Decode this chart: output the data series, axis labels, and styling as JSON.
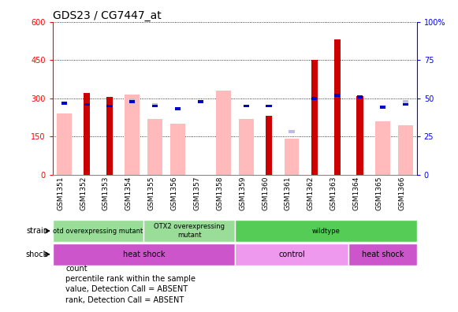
{
  "title": "GDS23 / CG7447_at",
  "samples": [
    "GSM1351",
    "GSM1352",
    "GSM1353",
    "GSM1354",
    "GSM1355",
    "GSM1356",
    "GSM1357",
    "GSM1358",
    "GSM1359",
    "GSM1360",
    "GSM1361",
    "GSM1362",
    "GSM1363",
    "GSM1364",
    "GSM1365",
    "GSM1366"
  ],
  "count_values": [
    null,
    320,
    305,
    null,
    null,
    null,
    null,
    null,
    null,
    230,
    null,
    450,
    530,
    308,
    null,
    null
  ],
  "percentile_values": [
    47,
    46,
    45,
    48,
    45,
    43,
    48,
    null,
    45,
    45,
    null,
    50,
    52,
    51,
    44,
    46
  ],
  "absent_value_values": [
    240,
    null,
    null,
    315,
    220,
    200,
    null,
    330,
    220,
    null,
    140,
    null,
    null,
    null,
    210,
    195
  ],
  "absent_rank_values": [
    47,
    null,
    null,
    49,
    46,
    null,
    null,
    null,
    null,
    null,
    28,
    null,
    null,
    null,
    null,
    48
  ],
  "ylim_left": [
    0,
    600
  ],
  "ylim_right": [
    0,
    100
  ],
  "yticks_left": [
    0,
    150,
    300,
    450,
    600
  ],
  "yticks_right": [
    0,
    25,
    50,
    75,
    100
  ],
  "color_count": "#cc0000",
  "color_percentile": "#0000cc",
  "color_absent_value": "#ffbbbb",
  "color_absent_rank": "#bbbbee",
  "strain_data": [
    {
      "start": 0,
      "end": 4,
      "label": "otd overexpressing mutant",
      "color": "#99dd99"
    },
    {
      "start": 4,
      "end": 8,
      "label": "OTX2 overexpressing\nmutant",
      "color": "#99dd99"
    },
    {
      "start": 8,
      "end": 16,
      "label": "wildtype",
      "color": "#55cc55"
    }
  ],
  "shock_data": [
    {
      "start": 0,
      "end": 8,
      "label": "heat shock",
      "color": "#cc55cc"
    },
    {
      "start": 8,
      "end": 13,
      "label": "control",
      "color": "#ee99ee"
    },
    {
      "start": 13,
      "end": 16,
      "label": "heat shock",
      "color": "#cc55cc"
    }
  ],
  "legend_items": [
    {
      "label": "count",
      "color": "#cc0000"
    },
    {
      "label": "percentile rank within the sample",
      "color": "#0000cc"
    },
    {
      "label": "value, Detection Call = ABSENT",
      "color": "#ffbbbb"
    },
    {
      "label": "rank, Detection Call = ABSENT",
      "color": "#bbbbee"
    }
  ]
}
